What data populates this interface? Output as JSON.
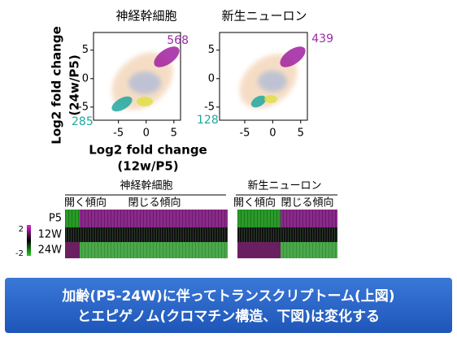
{
  "panels": [
    {
      "title": "神経幹細胞",
      "count_top": 568,
      "count_bottom": 285,
      "xlim": [
        -9.5,
        6.2
      ],
      "ylim": [
        -7.3,
        8.1
      ],
      "xticks": [
        -5,
        0,
        5
      ],
      "yticks": [
        5,
        0,
        -5
      ]
    },
    {
      "title": "新生ニューロン",
      "count_top": 439,
      "count_bottom": 128,
      "xlim": [
        -9.5,
        6.2
      ],
      "ylim": [
        -7.3,
        8.1
      ],
      "xticks": [
        -5,
        0,
        5
      ],
      "yticks": [
        5,
        0,
        -5
      ]
    }
  ],
  "y_axis_label": [
    "Log2 fold change",
    "(24w/P5)"
  ],
  "x_axis_label": [
    "Log2 fold change",
    "(12w/P5)"
  ],
  "heatmap": {
    "groups": [
      {
        "title": "神経幹細胞",
        "open": "開く傾向",
        "close": "閉じる傾向"
      },
      {
        "title": "新生ニューロン",
        "open": "開く傾向",
        "close": "閉じる傾向"
      }
    ],
    "rows": [
      "P5",
      "12W",
      "24W"
    ],
    "colorbar": [
      2,
      -2
    ]
  },
  "caption": [
    "加齢(P5-24W)に伴ってトランスクリプトーム(上図)",
    "とエピゲノム(クロマチン構造、下図)は変化する"
  ]
}
